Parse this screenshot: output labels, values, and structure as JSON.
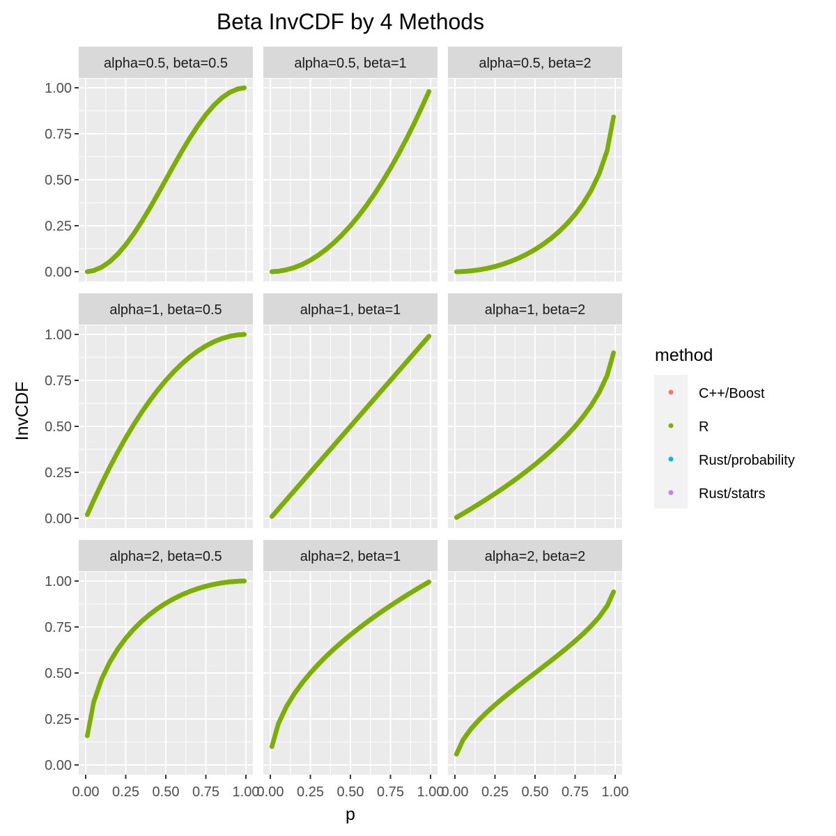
{
  "chart_data": {
    "type": "scatter",
    "title": "Beta InvCDF by 4 Methods",
    "xlabel": "p",
    "ylabel": "InvCDF",
    "xlim": [
      0,
      1
    ],
    "ylim": [
      0,
      1
    ],
    "x_ticks": [
      "0.00",
      "0.25",
      "0.50",
      "0.75",
      "1.00"
    ],
    "y_ticks": [
      "0.00",
      "0.25",
      "0.50",
      "0.75",
      "1.00"
    ],
    "grid": true,
    "legend": {
      "title": "method",
      "placement": "right",
      "entries": [
        {
          "label": "C++/Boost",
          "color": "#F8766D"
        },
        {
          "label": "R",
          "color": "#7CAE00"
        },
        {
          "label": "Rust/probability",
          "color": "#00BFC4"
        },
        {
          "label": "Rust/statrs",
          "color": "#C77CFF"
        }
      ]
    },
    "point_color": "#7CAE00",
    "p": [
      0.01,
      0.05,
      0.1,
      0.15,
      0.2,
      0.25,
      0.3,
      0.35,
      0.4,
      0.45,
      0.5,
      0.55,
      0.6,
      0.65,
      0.7,
      0.75,
      0.8,
      0.85,
      0.9,
      0.95,
      0.99
    ],
    "panels": [
      {
        "label": "alpha=0.5, beta=0.5",
        "y": [
          0.0002,
          0.0062,
          0.0245,
          0.0545,
          0.0955,
          0.1464,
          0.2061,
          0.273,
          0.3455,
          0.4218,
          0.5,
          0.5782,
          0.6545,
          0.727,
          0.7939,
          0.8536,
          0.9045,
          0.9455,
          0.9755,
          0.9938,
          0.9998
        ]
      },
      {
        "label": "alpha=0.5, beta=1",
        "y": [
          0.0001,
          0.0025,
          0.01,
          0.0225,
          0.04,
          0.0625,
          0.09,
          0.1225,
          0.16,
          0.2025,
          0.25,
          0.3025,
          0.36,
          0.4225,
          0.49,
          0.5625,
          0.64,
          0.7225,
          0.81,
          0.9025,
          0.9801
        ]
      },
      {
        "label": "alpha=0.5, beta=2",
        "y": [
          0.0,
          0.0011,
          0.0045,
          0.0101,
          0.018,
          0.0283,
          0.0411,
          0.0566,
          0.0748,
          0.0961,
          0.1206,
          0.1489,
          0.1812,
          0.2184,
          0.2613,
          0.3112,
          0.3702,
          0.4415,
          0.5319,
          0.6581,
          0.8413
        ]
      },
      {
        "label": "alpha=1, beta=0.5",
        "y": [
          0.0199,
          0.0975,
          0.19,
          0.2775,
          0.36,
          0.4375,
          0.51,
          0.5775,
          0.64,
          0.6975,
          0.75,
          0.7975,
          0.84,
          0.8775,
          0.91,
          0.9375,
          0.96,
          0.9775,
          0.99,
          0.9975,
          0.9999
        ]
      },
      {
        "label": "alpha=1, beta=1",
        "y": [
          0.01,
          0.05,
          0.1,
          0.15,
          0.2,
          0.25,
          0.3,
          0.35,
          0.4,
          0.45,
          0.5,
          0.55,
          0.6,
          0.65,
          0.7,
          0.75,
          0.8,
          0.85,
          0.9,
          0.95,
          0.99
        ]
      },
      {
        "label": "alpha=1, beta=2",
        "y": [
          0.005,
          0.0253,
          0.0513,
          0.0781,
          0.1056,
          0.134,
          0.1633,
          0.1938,
          0.2254,
          0.2584,
          0.2929,
          0.3292,
          0.3675,
          0.4084,
          0.4523,
          0.5,
          0.5528,
          0.6127,
          0.6838,
          0.7764,
          0.9
        ]
      },
      {
        "label": "alpha=2, beta=0.5",
        "y": [
          0.1587,
          0.3419,
          0.4681,
          0.5585,
          0.6298,
          0.6888,
          0.7387,
          0.7816,
          0.8188,
          0.8511,
          0.8794,
          0.9039,
          0.9252,
          0.9434,
          0.9589,
          0.9717,
          0.982,
          0.9899,
          0.9955,
          0.9989,
          1.0
        ]
      },
      {
        "label": "alpha=2, beta=1",
        "y": [
          0.1,
          0.2236,
          0.3162,
          0.3873,
          0.4472,
          0.5,
          0.5477,
          0.5916,
          0.6325,
          0.6708,
          0.7071,
          0.7416,
          0.7746,
          0.8062,
          0.8367,
          0.866,
          0.8944,
          0.922,
          0.9487,
          0.9747,
          0.995
        ]
      },
      {
        "label": "alpha=2, beta=2",
        "y": [
          0.0589,
          0.1354,
          0.1958,
          0.2444,
          0.2871,
          0.3264,
          0.3633,
          0.3986,
          0.4329,
          0.4667,
          0.5,
          0.5333,
          0.5671,
          0.6014,
          0.6367,
          0.6736,
          0.7129,
          0.7556,
          0.8042,
          0.8646,
          0.9411
        ]
      }
    ]
  }
}
